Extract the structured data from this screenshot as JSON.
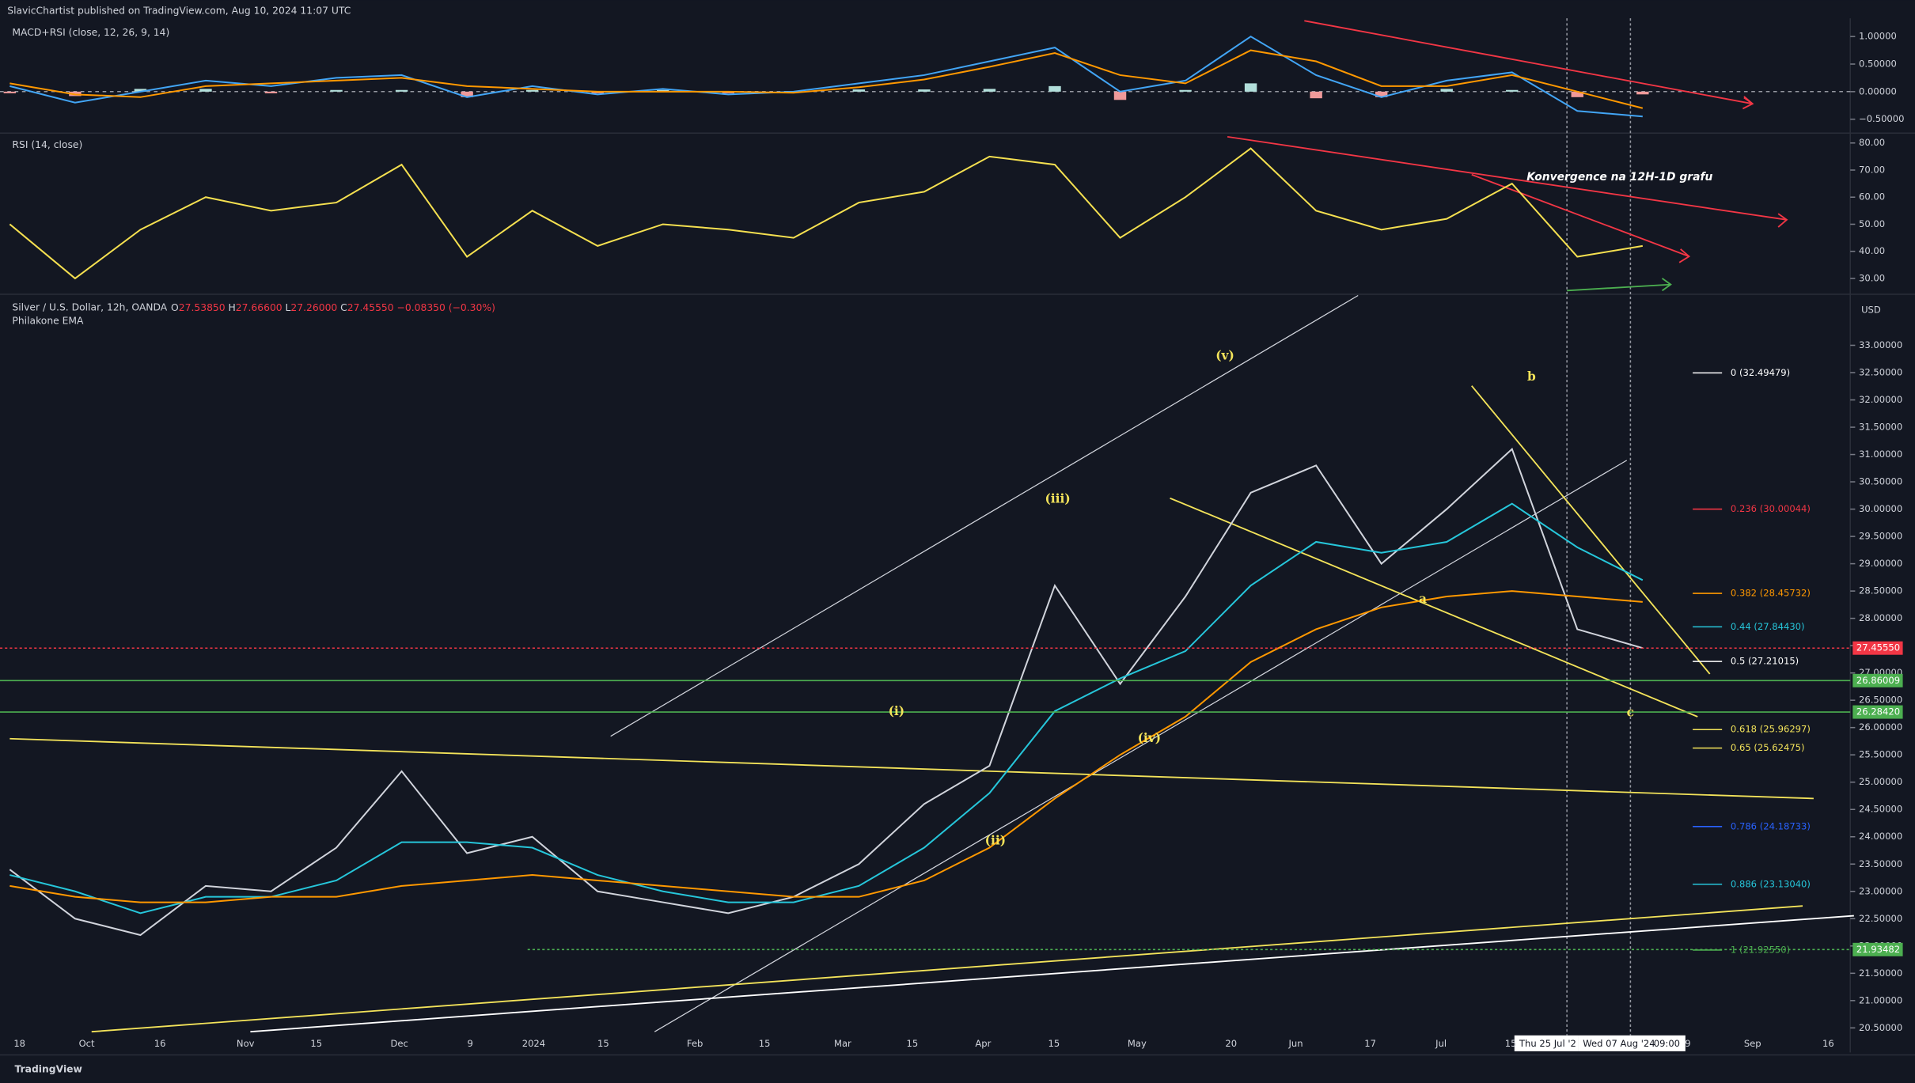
{
  "header": {
    "publisher": "SlavicChartist published on TradingView.com, Aug 10, 2024 11:07 UTC",
    "brand": "TradingView",
    "currency": "USD"
  },
  "crosshair": {
    "dates": [
      "Thu 25 Jul '2",
      "Wed 07 Aug '24"
    ],
    "time": "09:00"
  },
  "chart_data": [
    {
      "type": "macd",
      "title": "MACD+RSI (close, 12, 26, 9, 14)",
      "ylim": [
        -0.73,
        1.33
      ],
      "yticks": [
        {
          "value": 1,
          "label": "1.00000"
        },
        {
          "value": 0.5,
          "label": "0.50000"
        },
        {
          "value": 0,
          "label": "0.00000"
        },
        {
          "value": -0.5,
          "label": "−0.50000"
        }
      ],
      "series": [
        {
          "kind": "bar",
          "color": "#b2dfdb",
          "negative_color": "#ef9a9a",
          "values": [
            -0.03,
            -0.08,
            0.05,
            0.05,
            -0.03,
            0.03,
            0.03,
            -0.1,
            0.03,
            -0.03,
            0.03,
            -0.03,
            0.01,
            0.04,
            0.04,
            0.05,
            0.1,
            -0.15,
            0.03,
            0.15,
            -0.12,
            -0.1,
            0.05,
            0.03,
            -0.1,
            -0.05
          ]
        },
        {
          "kind": "line",
          "color": "#42a5f5",
          "values": [
            0.1,
            -0.2,
            0.0,
            0.2,
            0.1,
            0.25,
            0.3,
            -0.1,
            0.1,
            -0.05,
            0.05,
            -0.05,
            0.0,
            0.15,
            0.3,
            0.55,
            0.8,
            0.0,
            0.2,
            1.0,
            0.3,
            -0.1,
            0.2,
            0.35,
            -0.35,
            -0.45
          ]
        },
        {
          "kind": "line",
          "color": "#ff9800",
          "values": [
            0.15,
            -0.05,
            -0.1,
            0.1,
            0.15,
            0.2,
            0.25,
            0.1,
            0.05,
            0.0,
            0.0,
            0.0,
            -0.02,
            0.08,
            0.22,
            0.45,
            0.7,
            0.3,
            0.15,
            0.75,
            0.55,
            0.1,
            0.1,
            0.3,
            0.0,
            -0.3
          ]
        }
      ]
    },
    {
      "type": "line",
      "title": "RSI (14, close)",
      "ylim": [
        24.6,
        83.2
      ],
      "yticks": [
        {
          "value": 80,
          "label": "80.00"
        },
        {
          "value": 70,
          "label": "70.00"
        },
        {
          "value": 60,
          "label": "60.00"
        },
        {
          "value": 50,
          "label": "50.00"
        },
        {
          "value": 40,
          "label": "40.00"
        },
        {
          "value": 30,
          "label": "30.00"
        }
      ],
      "annotations": [
        {
          "text": "Konvergence na 12H-1D grafu"
        }
      ],
      "series": [
        {
          "kind": "line",
          "color": "#f5e050",
          "values": [
            50,
            30,
            48,
            60,
            55,
            58,
            72,
            38,
            55,
            42,
            50,
            48,
            45,
            58,
            62,
            75,
            72,
            45,
            60,
            78,
            55,
            48,
            52,
            65,
            38,
            42
          ]
        }
      ]
    },
    {
      "type": "line",
      "title": "Silver / U.S. Dollar, 12h, OANDA",
      "indicator": "Philakone EMA",
      "ohlc": [
        {
          "label": "O",
          "value": "27.53850"
        },
        {
          "label": "H",
          "value": "27.66600"
        },
        {
          "label": "L",
          "value": "27.26000"
        },
        {
          "label": "C",
          "value": "27.45550"
        }
      ],
      "change": "−0.08350 (−0.30%)",
      "ylim": [
        20.05,
        33.89
      ],
      "yticks": [
        {
          "value": 20.5,
          "label": "20.50000"
        },
        {
          "value": 21,
          "label": "21.00000"
        },
        {
          "value": 21.5,
          "label": "21.50000"
        },
        {
          "value": 22,
          "label": "22.00000"
        },
        {
          "value": 22.5,
          "label": "22.50000"
        },
        {
          "value": 23,
          "label": "23.00000"
        },
        {
          "value": 23.5,
          "label": "23.50000"
        },
        {
          "value": 24,
          "label": "24.00000"
        },
        {
          "value": 24.5,
          "label": "24.50000"
        },
        {
          "value": 25,
          "label": "25.00000"
        },
        {
          "value": 25.5,
          "label": "25.50000"
        },
        {
          "value": 26,
          "label": "26.00000"
        },
        {
          "value": 26.5,
          "label": "26.50000"
        },
        {
          "value": 27,
          "label": "27.00000"
        },
        {
          "value": 27.5,
          "label": "27.50000"
        },
        {
          "value": 28,
          "label": "28.00000"
        },
        {
          "value": 28.5,
          "label": "28.50000"
        },
        {
          "value": 29,
          "label": "29.00000"
        },
        {
          "value": 29.5,
          "label": "29.50000"
        },
        {
          "value": 30,
          "label": "30.00000"
        },
        {
          "value": 30.5,
          "label": "30.50000"
        },
        {
          "value": 31,
          "label": "31.00000"
        },
        {
          "value": 31.5,
          "label": "31.50000"
        },
        {
          "value": 32,
          "label": "32.00000"
        },
        {
          "value": 32.5,
          "label": "32.50000"
        },
        {
          "value": 33,
          "label": "33.00000"
        }
      ],
      "xtick_labels": [
        "18",
        "Oct",
        "16",
        "Nov",
        "15",
        "Dec",
        "9",
        "2024",
        "15",
        "Feb",
        "15",
        "Mar",
        "15",
        "Apr",
        "15",
        "May",
        "20",
        "Jun",
        "17",
        "Jul",
        "15",
        "9",
        "Sep",
        "16"
      ],
      "series": [
        {
          "kind": "line",
          "color": "#d1d4dc",
          "values": [
            23.4,
            22.5,
            22.2,
            23.1,
            23.0,
            23.8,
            25.2,
            23.7,
            24.0,
            23.0,
            22.8,
            22.6,
            22.9,
            23.5,
            24.6,
            25.3,
            28.6,
            26.8,
            28.4,
            30.3,
            30.8,
            29.0,
            30.0,
            31.1,
            27.8,
            27.4555
          ]
        },
        {
          "kind": "line",
          "color": "#26c6da",
          "values": [
            23.3,
            23.0,
            22.6,
            22.9,
            22.9,
            23.2,
            23.9,
            23.9,
            23.8,
            23.3,
            23.0,
            22.8,
            22.8,
            23.1,
            23.8,
            24.8,
            26.3,
            26.9,
            27.4,
            28.6,
            29.4,
            29.2,
            29.4,
            30.1,
            29.3,
            28.7
          ]
        },
        {
          "kind": "line",
          "color": "#ff9800",
          "values": [
            23.1,
            22.9,
            22.8,
            22.8,
            22.9,
            22.9,
            23.1,
            23.2,
            23.3,
            23.2,
            23.1,
            23.0,
            22.9,
            22.9,
            23.2,
            23.8,
            24.7,
            25.5,
            26.2,
            27.2,
            27.8,
            28.2,
            28.4,
            28.5,
            28.4,
            28.3
          ]
        }
      ],
      "fib_levels": [
        {
          "label": "0 (32.49479)",
          "value": 32.49479,
          "color": "#ffffff"
        },
        {
          "label": "0.236 (30.00044)",
          "value": 30.00044,
          "color": "#f23645"
        },
        {
          "label": "0.382 (28.45732)",
          "value": 28.45732,
          "color": "#ff9800"
        },
        {
          "label": "0.44 (27.84430)",
          "value": 27.8443,
          "color": "#26c6da"
        },
        {
          "label": "0.5 (27.21015)",
          "value": 27.21015,
          "color": "#ffffff"
        },
        {
          "label": "0.618 (25.96297)",
          "value": 25.96297,
          "color": "#f3e35a"
        },
        {
          "label": "0.65 (25.62475)",
          "value": 25.62475,
          "color": "#f3e35a"
        },
        {
          "label": "0.786 (24.18733)",
          "value": 24.18733,
          "color": "#2962ff"
        },
        {
          "label": "0.886 (23.13040)",
          "value": 23.1304,
          "color": "#26c6da"
        },
        {
          "label": "1 (21.92550)",
          "value": 21.9255,
          "color": "#4caf50"
        }
      ],
      "price_lines": [
        {
          "value": 27.4555,
          "label": "27.45550",
          "color": "#f23645"
        },
        {
          "value": 26.86009,
          "label": "26.86009",
          "color": "#4caf50"
        },
        {
          "value": 26.2842,
          "label": "26.28420",
          "color": "#4caf50"
        },
        {
          "value": 21.93482,
          "label": "21.93482",
          "color": "#4caf50"
        }
      ],
      "annotations": [
        {
          "text": "(v)"
        },
        {
          "text": "(iii)"
        },
        {
          "text": "(i)"
        },
        {
          "text": "(iv)"
        },
        {
          "text": "(ii)"
        },
        {
          "text": "a"
        },
        {
          "text": "b"
        },
        {
          "text": "c"
        }
      ]
    }
  ]
}
